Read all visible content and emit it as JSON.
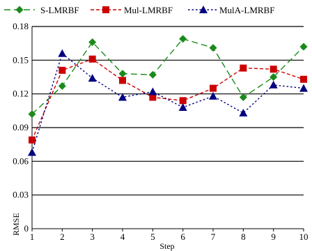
{
  "chart_data": {
    "type": "line",
    "title": "",
    "xlabel": "Step",
    "ylabel": "RMSE",
    "categories": [
      1,
      2,
      3,
      4,
      5,
      6,
      7,
      8,
      9,
      10
    ],
    "ylim": [
      0,
      0.18
    ],
    "yticks": [
      "0",
      "0.03",
      "0.06",
      "0.09",
      "0.12",
      "0.15",
      "0.18"
    ],
    "grid": "horizontal major lines",
    "legend_position": "top",
    "series": [
      {
        "name": "S-LMRBF",
        "color": "#1a8a1a",
        "marker": "diamond",
        "line_style": "long-dash",
        "values": [
          0.102,
          0.127,
          0.166,
          0.138,
          0.137,
          0.169,
          0.161,
          0.117,
          0.135,
          0.162
        ]
      },
      {
        "name": "Mul-LMRBF",
        "color": "#cc0000",
        "marker": "square",
        "line_style": "dash",
        "values": [
          0.079,
          0.141,
          0.151,
          0.132,
          0.117,
          0.114,
          0.125,
          0.143,
          0.142,
          0.133
        ]
      },
      {
        "name": "MulA-LMRBF",
        "color": "#000080",
        "marker": "triangle",
        "line_style": "dot",
        "values": [
          0.068,
          0.156,
          0.134,
          0.117,
          0.122,
          0.108,
          0.118,
          0.103,
          0.128,
          0.125
        ]
      }
    ]
  }
}
